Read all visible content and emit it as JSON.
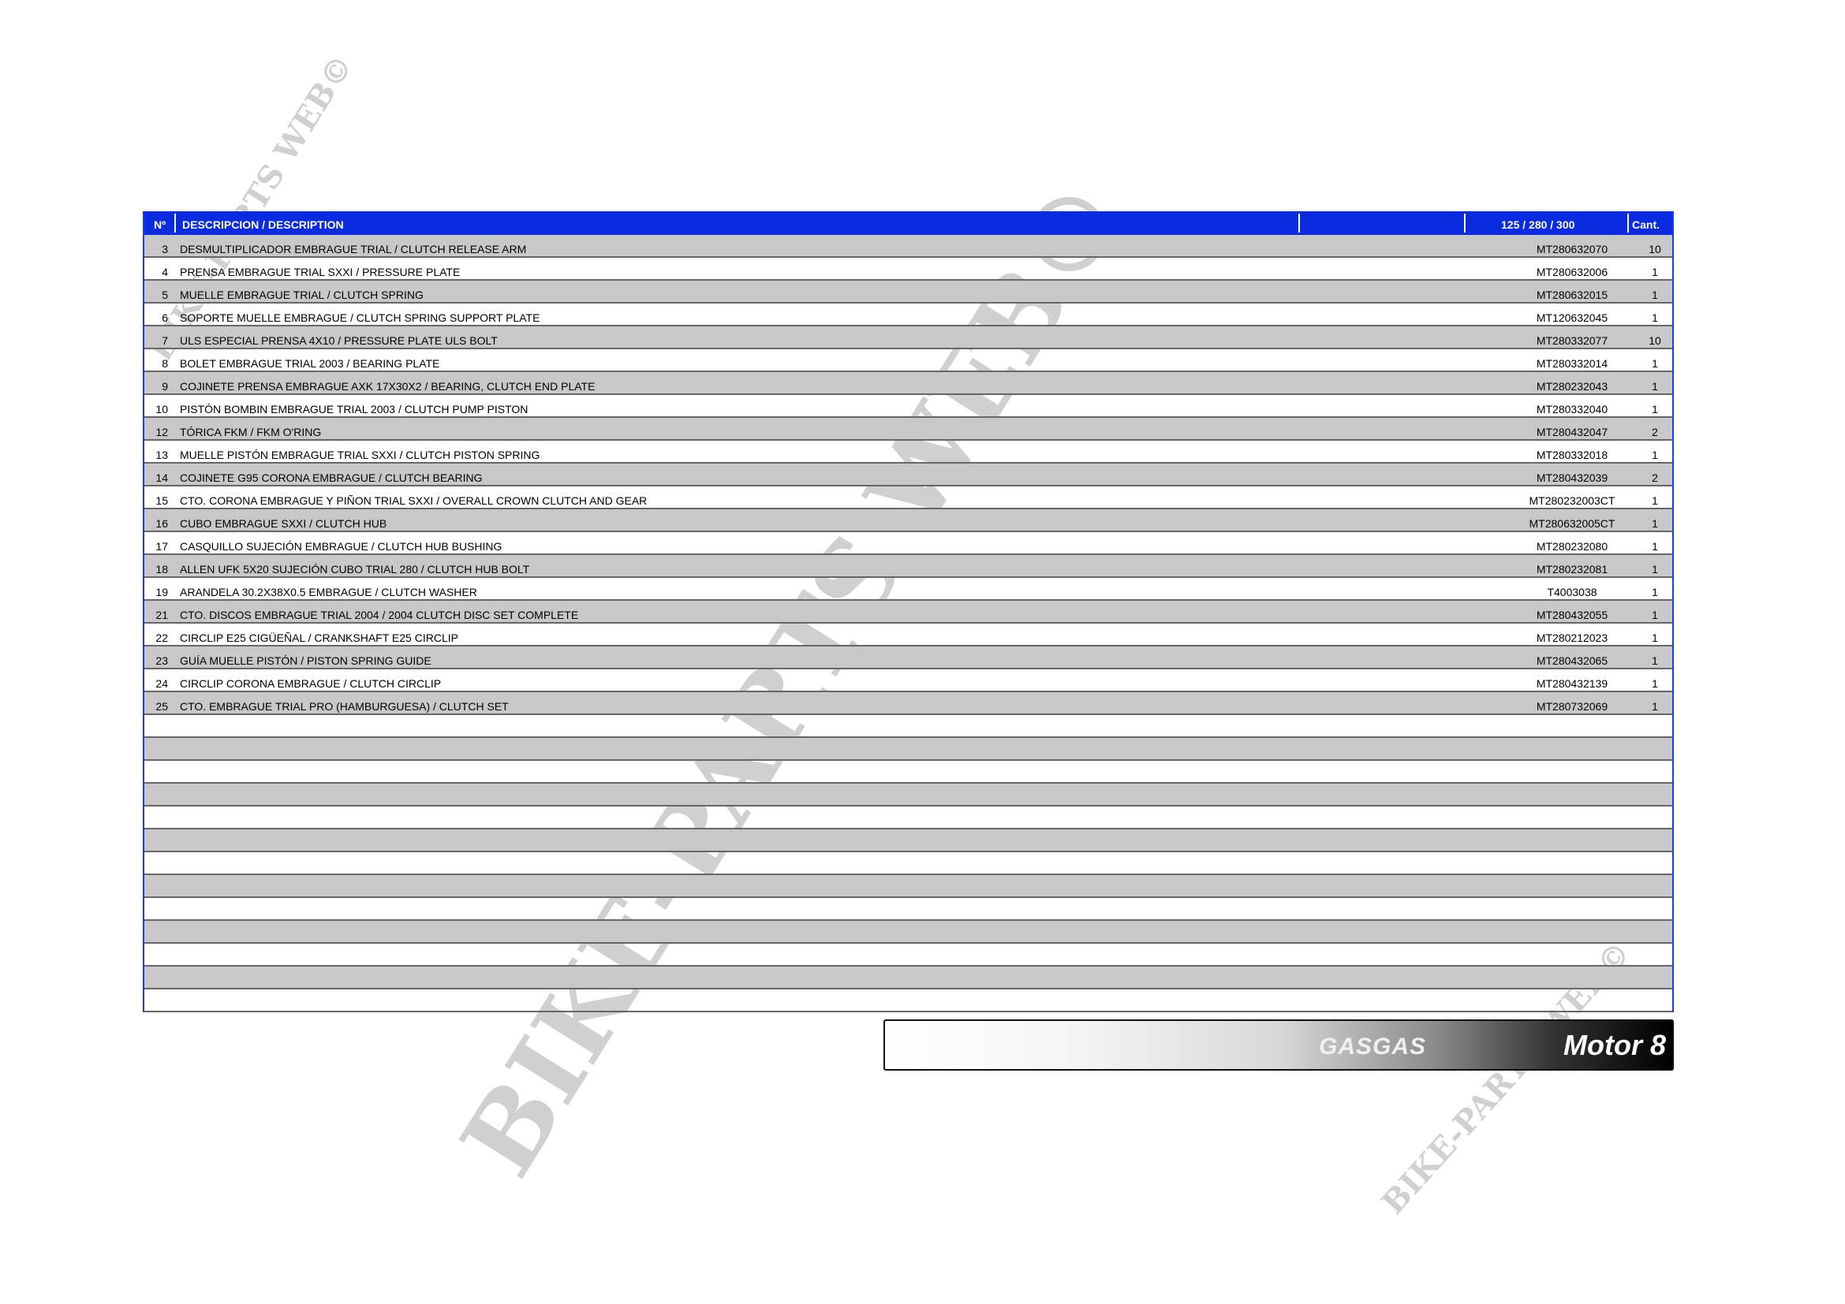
{
  "header": {
    "no": "Nº",
    "description": "DESCRIPCION / DESCRIPTION",
    "models": "125 /  280 / 300",
    "qty": "Cant."
  },
  "rows": [
    {
      "no": "3",
      "description": "DESMULTIPLICADOR EMBRAGUE TRIAL / CLUTCH RELEASE ARM",
      "part": "MT280632070",
      "qty": "10"
    },
    {
      "no": "4",
      "description": "PRENSA EMBRAGUE TRIAL SXXI / PRESSURE PLATE",
      "part": "MT280632006",
      "qty": "1"
    },
    {
      "no": "5",
      "description": "MUELLE EMBRAGUE TRIAL / CLUTCH SPRING",
      "part": "MT280632015",
      "qty": "1"
    },
    {
      "no": "6",
      "description": "SOPORTE MUELLE EMBRAGUE / CLUTCH SPRING SUPPORT PLATE",
      "part": "MT120632045",
      "qty": "1"
    },
    {
      "no": "7",
      "description": "ULS ESPECIAL PRENSA 4X10 / PRESSURE PLATE ULS BOLT",
      "part": "MT280332077",
      "qty": "10"
    },
    {
      "no": "8",
      "description": "BOLET EMBRAGUE TRIAL 2003 / BEARING PLATE",
      "part": "MT280332014",
      "qty": "1"
    },
    {
      "no": "9",
      "description": "COJINETE PRENSA EMBRAGUE AXK 17X30X2 / BEARING, CLUTCH END PLATE",
      "part": "MT280232043",
      "qty": "1"
    },
    {
      "no": "10",
      "description": "PISTÓN BOMBIN EMBRAGUE TRIAL 2003 / CLUTCH PUMP PISTON",
      "part": "MT280332040",
      "qty": "1"
    },
    {
      "no": "12",
      "description": "TÓRICA FKM / FKM O'RING",
      "part": "MT280432047",
      "qty": "2"
    },
    {
      "no": "13",
      "description": "MUELLE PISTÓN EMBRAGUE TRIAL SXXI / CLUTCH PISTON SPRING",
      "part": "MT280332018",
      "qty": "1"
    },
    {
      "no": "14",
      "description": "COJINETE G95 CORONA EMBRAGUE / CLUTCH BEARING",
      "part": "MT280432039",
      "qty": "2"
    },
    {
      "no": "15",
      "description": "CTO. CORONA EMBRAGUE  Y PIÑON TRIAL SXXI / OVERALL CROWN CLUTCH AND GEAR",
      "part": "MT280232003CT",
      "qty": "1"
    },
    {
      "no": "16",
      "description": "CUBO EMBRAGUE SXXI / CLUTCH HUB",
      "part": "MT280632005CT",
      "qty": "1"
    },
    {
      "no": "17",
      "description": "CASQUILLO SUJECIÓN EMBRAGUE / CLUTCH HUB BUSHING",
      "part": "MT280232080",
      "qty": "1"
    },
    {
      "no": "18",
      "description": "ALLEN UFK 5X20 SUJECIÓN CUBO TRIAL 280 / CLUTCH HUB BOLT",
      "part": "MT280232081",
      "qty": "1"
    },
    {
      "no": "19",
      "description": "ARANDELA 30.2X38X0.5 EMBRAGUE / CLUTCH WASHER",
      "part": "T4003038",
      "qty": "1"
    },
    {
      "no": "21",
      "description": "CTO. DISCOS EMBRAGUE TRIAL 2004 / 2004 CLUTCH DISC SET COMPLETE",
      "part": "MT280432055",
      "qty": "1"
    },
    {
      "no": "22",
      "description": "CIRCLIP E25 CIGÜEÑAL / CRANKSHAFT E25 CIRCLIP",
      "part": "MT280212023",
      "qty": "1"
    },
    {
      "no": "23",
      "description": "GUÍA MUELLE PISTÓN / PISTON SPRING GUIDE",
      "part": "MT280432065",
      "qty": "1"
    },
    {
      "no": "24",
      "description": "CIRCLIP CORONA EMBRAGUE / CLUTCH CIRCLIP",
      "part": "MT280432139",
      "qty": "1"
    },
    {
      "no": "25",
      "description": "CTO. EMBRAGUE TRIAL PRO (HAMBURGUESA) / CLUTCH SET",
      "part": "MT280732069",
      "qty": "1"
    }
  ],
  "empty_rows": 13,
  "footer": {
    "brand": "GASGAS",
    "section": "Motor 8"
  },
  "watermark": "BIKE-PARTS WEB©",
  "colors": {
    "header": "#0a2be0",
    "stripe": "#c8c8c8"
  }
}
